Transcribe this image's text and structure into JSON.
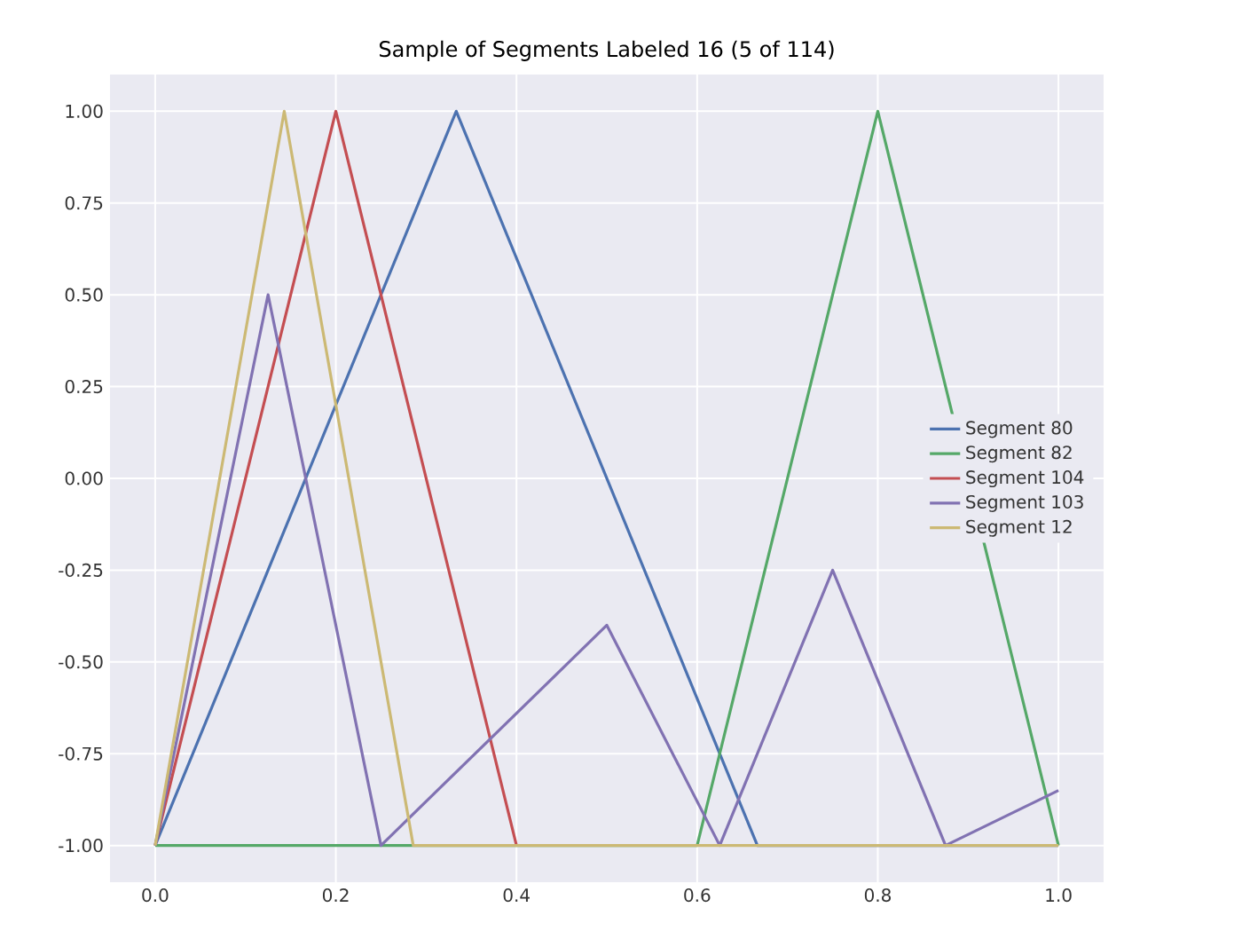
{
  "chart_data": {
    "type": "line",
    "title": "Sample of Segments Labeled 16 (5 of 114)",
    "series": [
      {
        "name": "Segment 80",
        "color": "#4c72b0",
        "x": [
          0,
          0.3333,
          0.6667,
          1.0
        ],
        "values": [
          -1,
          1,
          -1,
          -1
        ]
      },
      {
        "name": "Segment 82",
        "color": "#55a868",
        "x": [
          0,
          0.6,
          0.8,
          1.0
        ],
        "values": [
          -1,
          -1,
          1,
          -1
        ]
      },
      {
        "name": "Segment 104",
        "color": "#c44e52",
        "x": [
          0,
          0.2,
          0.4
        ],
        "values": [
          -1,
          1,
          -1
        ]
      },
      {
        "name": "Segment 103",
        "color": "#8172b2",
        "x": [
          0,
          0.125,
          0.25,
          0.5,
          0.625,
          0.75,
          0.875,
          1.0
        ],
        "values": [
          -1,
          0.5,
          -1,
          -0.4,
          -1,
          -0.25,
          -1,
          -0.85
        ]
      },
      {
        "name": "Segment 12",
        "color": "#ccb974",
        "x": [
          0,
          0.1429,
          0.2857,
          1.0
        ],
        "values": [
          -1,
          1,
          -1,
          -1
        ]
      }
    ],
    "xlim": [
      -0.05,
      1.05
    ],
    "ylim": [
      -1.1,
      1.1
    ],
    "xticks": [
      {
        "value": 0,
        "label": "0.0"
      },
      {
        "value": 0.2,
        "label": "0.2"
      },
      {
        "value": 0.4,
        "label": "0.4"
      },
      {
        "value": 0.6,
        "label": "0.6"
      },
      {
        "value": 0.8,
        "label": "0.8"
      },
      {
        "value": 1.0,
        "label": "1.0"
      }
    ],
    "yticks": [
      {
        "value": -1,
        "label": "-1.00"
      },
      {
        "value": -0.75,
        "label": "-0.75"
      },
      {
        "value": -0.5,
        "label": "-0.50"
      },
      {
        "value": -0.25,
        "label": "-0.25"
      },
      {
        "value": 0,
        "label": "0.00"
      },
      {
        "value": 0.25,
        "label": "0.25"
      },
      {
        "value": 0.5,
        "label": "0.50"
      },
      {
        "value": 0.75,
        "label": "0.75"
      },
      {
        "value": 1,
        "label": "1.00"
      }
    ],
    "grid": true,
    "legend": "right",
    "marker": "none",
    "line_style": "solid"
  }
}
